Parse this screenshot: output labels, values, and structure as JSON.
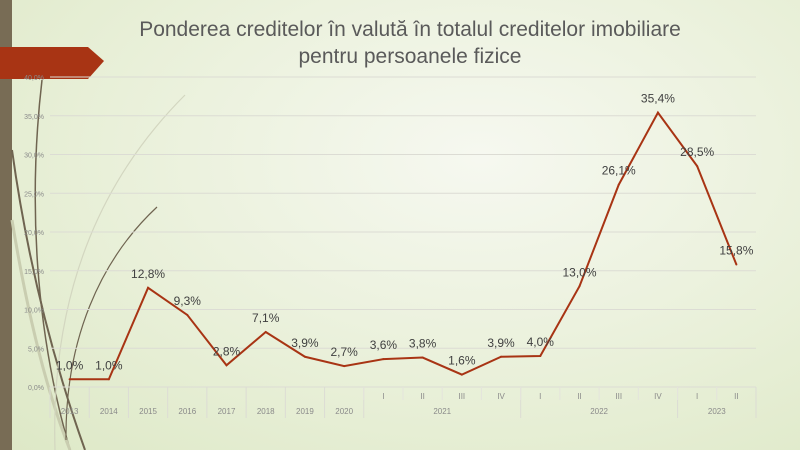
{
  "chart_data": {
    "type": "line",
    "title": "Ponderea creditelor în valută în totalul creditelor imobiliare pentru persoanele fizice",
    "title_lines": [
      "Ponderea creditelor în valută în totalul creditelor imobiliare",
      "pentru persoanele fizice"
    ],
    "categories": [
      "2013",
      "2014",
      "2015",
      "2016",
      "2017",
      "2018",
      "2019",
      "2020",
      "I",
      "II",
      "III",
      "IV",
      "I",
      "II",
      "III",
      "IV",
      "I",
      "II"
    ],
    "groups": [
      {
        "label": "2021",
        "start": 8,
        "end": 11
      },
      {
        "label": "2022",
        "start": 12,
        "end": 15
      },
      {
        "label": "2023",
        "start": 16,
        "end": 17
      }
    ],
    "values": [
      1.0,
      1.0,
      12.8,
      9.3,
      2.8,
      7.1,
      3.9,
      2.7,
      3.6,
      3.8,
      1.6,
      3.9,
      4.0,
      13.0,
      26.1,
      35.4,
      28.5,
      15.8
    ],
    "data_labels": [
      "1,0%",
      "1,0%",
      "12,8%",
      "9,3%",
      "2,8%",
      "7,1%",
      "3,9%",
      "2,7%",
      "3,6%",
      "3,8%",
      "1,6%",
      "3,9%",
      "4,0%",
      "13,0%",
      "26,1%",
      "35,4%",
      "28,5%",
      "15,8%"
    ],
    "yticks": [
      "0,0%",
      "5,0%",
      "10,0%",
      "15,0%",
      "20,0%",
      "25,0%",
      "30,0%",
      "35,0%",
      "40,0%"
    ],
    "ylim": [
      0,
      40
    ],
    "grid": true,
    "line_color": "#a83414"
  }
}
